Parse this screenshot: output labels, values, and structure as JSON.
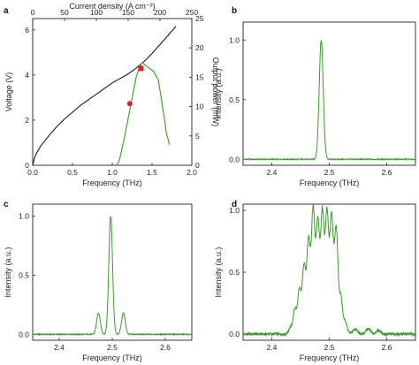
{
  "chart_data": [
    {
      "id": "a",
      "panel_label": "a",
      "type": "line",
      "xlabel": "Frequency (THz)",
      "top_xlabel": "Current density (A cm⁻²)",
      "ylabel": "Voltage (V)",
      "y2label": "Output power (mW)",
      "xlim": [
        0,
        2.0
      ],
      "ylim": [
        0,
        6.5
      ],
      "top_xlim": [
        0,
        250
      ],
      "y2lim": [
        0,
        25
      ],
      "xticks": [
        "0.0",
        "0.5",
        "1.0",
        "1.5",
        "2.0"
      ],
      "yticks": [
        "0",
        "2",
        "4",
        "6"
      ],
      "top_xticks": [
        "0",
        "50",
        "100",
        "150",
        "200",
        "250"
      ],
      "y2ticks": [
        "0",
        "5",
        "10",
        "15",
        "20",
        "25"
      ],
      "series": [
        {
          "role": "voltage",
          "color": "#1a1a1a",
          "x": [
            0.0,
            0.02,
            0.05,
            0.1,
            0.2,
            0.3,
            0.4,
            0.5,
            0.6,
            0.7,
            0.8,
            0.9,
            1.0,
            1.1,
            1.2,
            1.3,
            1.4,
            1.5,
            1.6,
            1.7,
            1.8
          ],
          "y": [
            0.0,
            0.3,
            0.55,
            0.85,
            1.3,
            1.7,
            2.05,
            2.35,
            2.65,
            2.9,
            3.15,
            3.4,
            3.65,
            3.85,
            4.05,
            4.3,
            4.6,
            4.95,
            5.35,
            5.75,
            6.15
          ]
        },
        {
          "role": "output-power",
          "color": "#3a9a2a",
          "x": [
            1.05,
            1.08,
            1.1,
            1.15,
            1.2,
            1.25,
            1.3,
            1.35,
            1.38,
            1.42,
            1.47,
            1.52,
            1.58,
            1.62,
            1.66,
            1.68,
            1.7,
            1.72
          ],
          "y": [
            0.0,
            0.5,
            1.5,
            4.5,
            8.0,
            11.5,
            15.0,
            17.0,
            17.5,
            17.0,
            16.5,
            16.0,
            14.5,
            11.0,
            7.5,
            5.5,
            4.5,
            3.5
          ]
        }
      ],
      "markers": [
        {
          "x": 1.22,
          "y": 10.5,
          "color": "#e02020",
          "shape": "circle"
        },
        {
          "x": 1.36,
          "y": 16.5,
          "color": "#e02020",
          "shape": "square"
        }
      ]
    },
    {
      "id": "b",
      "panel_label": "b",
      "type": "line",
      "xlabel": "Frequency (THz)",
      "ylabel": "Intensity (a.u.)",
      "xlim": [
        2.35,
        2.65
      ],
      "ylim": [
        -0.05,
        1.15
      ],
      "xticks": [
        "2.4",
        "2.5",
        "2.6"
      ],
      "yticks": [
        "0.0",
        "0.5",
        "1.0"
      ],
      "series": [
        {
          "color": "#3a9a2a",
          "noise": 0.004,
          "peaks": [
            {
              "x": 2.486,
              "h": 1.0,
              "w": 0.0035
            }
          ]
        }
      ]
    },
    {
      "id": "c",
      "panel_label": "c",
      "type": "line",
      "xlabel": "Frequency (THz)",
      "ylabel": "Intensity (a.u.)",
      "xlim": [
        2.35,
        2.65
      ],
      "ylim": [
        -0.05,
        1.1
      ],
      "xticks": [
        "2.4",
        "2.5",
        "2.6"
      ],
      "yticks": [
        "0.0",
        "0.5",
        "1.0"
      ],
      "series": [
        {
          "color": "#3a9a2a",
          "noise": 0.004,
          "peaks": [
            {
              "x": 2.474,
              "h": 0.18,
              "w": 0.0035
            },
            {
              "x": 2.497,
              "h": 1.0,
              "w": 0.0035
            },
            {
              "x": 2.521,
              "h": 0.18,
              "w": 0.0035
            }
          ]
        }
      ]
    },
    {
      "id": "d",
      "panel_label": "d",
      "type": "line",
      "xlabel": "Frequency (THz)",
      "ylabel": "Intensity (a.u.)",
      "xlim": [
        2.35,
        2.65
      ],
      "ylim": [
        -0.05,
        1.05
      ],
      "xticks": [
        "2.4",
        "2.5",
        "2.6"
      ],
      "yticks": [
        "0.0",
        "0.5",
        "1.0"
      ],
      "series": [
        {
          "color": "#3a9a2a",
          "noise": 0.012,
          "peaks": [
            {
              "x": 2.432,
              "h": 0.05,
              "w": 0.003
            },
            {
              "x": 2.44,
              "h": 0.2,
              "w": 0.003
            },
            {
              "x": 2.448,
              "h": 0.35,
              "w": 0.003
            },
            {
              "x": 2.456,
              "h": 0.55,
              "w": 0.003
            },
            {
              "x": 2.464,
              "h": 0.75,
              "w": 0.003
            },
            {
              "x": 2.472,
              "h": 1.0,
              "w": 0.003
            },
            {
              "x": 2.48,
              "h": 0.9,
              "w": 0.003
            },
            {
              "x": 2.488,
              "h": 0.98,
              "w": 0.003
            },
            {
              "x": 2.496,
              "h": 0.97,
              "w": 0.003
            },
            {
              "x": 2.504,
              "h": 0.93,
              "w": 0.003
            },
            {
              "x": 2.512,
              "h": 0.85,
              "w": 0.003
            },
            {
              "x": 2.52,
              "h": 0.3,
              "w": 0.003
            },
            {
              "x": 2.528,
              "h": 0.1,
              "w": 0.003
            },
            {
              "x": 2.545,
              "h": 0.04,
              "w": 0.004
            },
            {
              "x": 2.568,
              "h": 0.04,
              "w": 0.004
            },
            {
              "x": 2.585,
              "h": 0.03,
              "w": 0.004
            }
          ]
        }
      ]
    }
  ]
}
